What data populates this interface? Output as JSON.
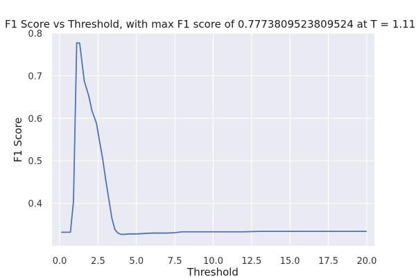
{
  "chart_data": {
    "type": "line",
    "title": "F1 Score vs Threshold, with max F1 score of 0.7773809523809524 at T = 1.11)",
    "xlabel": "Threshold",
    "ylabel": "F1 Score",
    "xlim": [
      -0.5,
      20.5
    ],
    "ylim": [
      0.3,
      0.8
    ],
    "x_ticks": [
      0.0,
      2.5,
      5.0,
      7.5,
      10.0,
      12.5,
      15.0,
      17.5,
      20.0
    ],
    "x_tick_labels": [
      "0.0",
      "2.5",
      "5.0",
      "7.5",
      "10.0",
      "12.5",
      "15.0",
      "17.5",
      "20.0"
    ],
    "y_ticks": [
      0.4,
      0.5,
      0.6,
      0.7,
      0.8
    ],
    "y_tick_labels": [
      "0.4",
      "0.5",
      "0.6",
      "0.7",
      "0.8"
    ],
    "grid": true,
    "series": [
      {
        "color": "#4c72b0",
        "x": [
          0.1,
          0.7,
          0.9,
          1.11,
          1.3,
          1.6,
          1.9,
          2.1,
          2.4,
          2.6,
          2.8,
          3.0,
          3.2,
          3.4,
          3.6,
          3.8,
          4.0,
          4.2,
          4.5,
          5.0,
          5.5,
          6.0,
          7.0,
          7.5,
          8.0,
          9.0,
          10.0,
          12.0,
          13.0,
          14.0,
          16.0,
          18.0,
          20.0
        ],
        "y": [
          0.332,
          0.332,
          0.405,
          0.7774,
          0.777,
          0.688,
          0.652,
          0.618,
          0.588,
          0.545,
          0.505,
          0.455,
          0.41,
          0.365,
          0.338,
          0.33,
          0.327,
          0.327,
          0.328,
          0.328,
          0.329,
          0.33,
          0.33,
          0.331,
          0.333,
          0.333,
          0.333,
          0.333,
          0.334,
          0.334,
          0.334,
          0.334,
          0.334
        ]
      }
    ]
  }
}
